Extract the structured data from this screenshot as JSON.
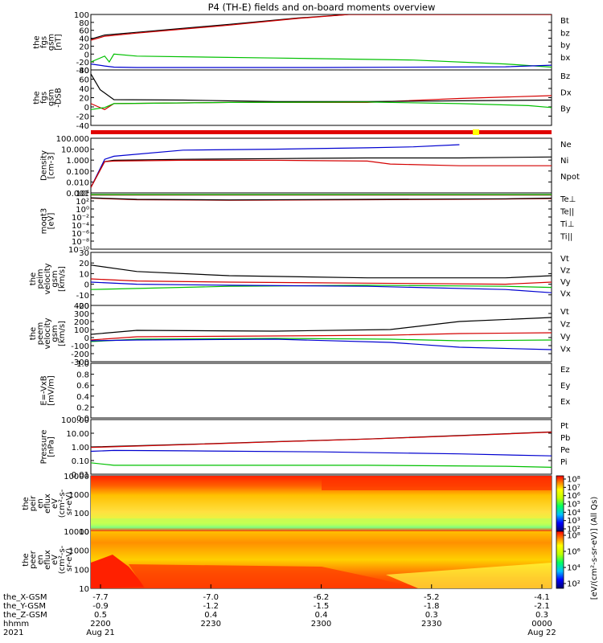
{
  "title": "P4 (TH-E) fields and on-board moments overview",
  "colors": {
    "black": "#000000",
    "red": "#d40000",
    "green": "#00c000",
    "blue": "#0000d0",
    "darkred": "#8b0000",
    "yellow": "#ffff00"
  },
  "chart_data": [
    {
      "type": "line",
      "ylabel_lines": [
        "the",
        "fgs",
        "gsm",
        "[nT]"
      ],
      "ylim": [
        -40,
        100
      ],
      "yticks": [
        "100",
        "80",
        "60",
        "40",
        "20",
        "0",
        "-20",
        "-40"
      ],
      "legend": [
        {
          "label": "Bt",
          "color": "#000000"
        },
        {
          "label": "bz",
          "color": "#d40000"
        },
        {
          "label": "by",
          "color": "#00c000"
        },
        {
          "label": "bx",
          "color": "#0000d0"
        }
      ],
      "series": [
        {
          "name": "Bt",
          "color": "#000000",
          "x": [
            0,
            0.03,
            0.1,
            0.3,
            0.45,
            0.56,
            1
          ],
          "y": [
            38,
            48,
            55,
            75,
            91,
            100,
            100
          ]
        },
        {
          "name": "bz",
          "color": "#d40000",
          "x": [
            0,
            0.03,
            0.1,
            0.3,
            0.45,
            0.56,
            1
          ],
          "y": [
            35,
            45,
            53,
            73,
            90,
            100,
            100
          ]
        },
        {
          "name": "by",
          "color": "#00c000",
          "x": [
            0,
            0.03,
            0.04,
            0.05,
            0.1,
            0.4,
            0.7,
            0.9,
            1
          ],
          "y": [
            -20,
            -5,
            -20,
            0,
            -5,
            -10,
            -15,
            -25,
            -33
          ]
        },
        {
          "name": "bx",
          "color": "#0000d0",
          "x": [
            0,
            0.03,
            0.05,
            0.1,
            0.5,
            0.9,
            1
          ],
          "y": [
            -25,
            -30,
            -33,
            -34,
            -34,
            -32,
            -28
          ]
        }
      ]
    },
    {
      "type": "line",
      "ylabel_lines": [
        "the",
        "fgs",
        "gsm",
        "-DSB"
      ],
      "ylim": [
        -50,
        90
      ],
      "yticks": [
        "80",
        "60",
        "40",
        "20",
        "0",
        "-20",
        "-40"
      ],
      "legend": [
        {
          "label": "Bz",
          "color": "#d40000"
        },
        {
          "label": "Dx",
          "color": "#000000"
        },
        {
          "label": "By",
          "color": "#00c000"
        }
      ],
      "series": [
        {
          "name": "Bz",
          "color": "#d40000",
          "x": [
            0,
            0.03,
            0.05,
            0.3,
            0.6,
            0.8,
            1
          ],
          "y": [
            5,
            -10,
            5,
            8,
            8,
            18,
            25
          ]
        },
        {
          "name": "Dx",
          "color": "#000000",
          "x": [
            0,
            0.02,
            0.05,
            0.2,
            0.4,
            0.6,
            0.8,
            1
          ],
          "y": [
            80,
            40,
            15,
            14,
            10,
            10,
            12,
            14
          ]
        },
        {
          "name": "By",
          "color": "#00c000",
          "x": [
            0,
            0.03,
            0.05,
            0.3,
            0.6,
            0.8,
            0.95,
            1
          ],
          "y": [
            -10,
            -5,
            5,
            8,
            9,
            5,
            0,
            -5
          ]
        }
      ]
    },
    {
      "type": "line",
      "ylabel_lines": [
        "Density",
        "[cm-3]"
      ],
      "yscale": "log",
      "ylim": [
        0.0001,
        1000
      ],
      "yticks": [
        "100.000",
        "10.000",
        "1.000",
        "0.100",
        "0.010",
        "0.001"
      ],
      "legend": [
        {
          "label": "Ne",
          "color": "#d40000"
        },
        {
          "label": "Ni",
          "color": "#000000"
        },
        {
          "label": "Npot",
          "color": "#0000d0"
        }
      ],
      "series": [
        {
          "name": "Npot",
          "color": "#0000d0",
          "x": [
            0,
            0.03,
            0.05,
            0.2,
            0.4,
            0.6,
            0.7,
            0.8
          ],
          "y": [
            0.0005,
            2,
            5,
            30,
            40,
            60,
            80,
            150
          ]
        },
        {
          "name": "Ni",
          "color": "#000000",
          "x": [
            0,
            0.03,
            0.05,
            0.2,
            0.4,
            0.6,
            0.8,
            1
          ],
          "y": [
            0.0005,
            1,
            1.5,
            2,
            2.5,
            3,
            3,
            4
          ]
        },
        {
          "name": "Ne",
          "color": "#d40000",
          "x": [
            0,
            0.03,
            0.05,
            0.2,
            0.4,
            0.6,
            0.65,
            0.8,
            1
          ],
          "y": [
            0.0005,
            1,
            1.2,
            1.5,
            1.5,
            1.2,
            0.5,
            0.3,
            0.3
          ]
        }
      ]
    },
    {
      "type": "line",
      "ylabel_lines": [
        "moqt3",
        "[eV]"
      ],
      "yscale": "log",
      "ylim": [
        1e-10,
        10000
      ],
      "yticks": [
        "10⁴",
        "10²",
        "10⁰",
        "10⁻²",
        "10⁻⁴",
        "10⁻⁶",
        "10⁻⁸",
        "10⁻¹⁰"
      ],
      "legend": [
        {
          "label": "Te⊥",
          "color": "#d40000"
        },
        {
          "label": "Te||",
          "color": "#000000"
        },
        {
          "label": "Ti⊥",
          "color": "#8b0000"
        },
        {
          "label": "Ti||",
          "color": "#00c000"
        }
      ],
      "series": [
        {
          "name": "Te⊥",
          "color": "#d40000",
          "x": [
            0,
            0.1,
            0.3,
            0.6,
            0.9,
            1
          ],
          "y": [
            500,
            200,
            150,
            200,
            300,
            400
          ]
        },
        {
          "name": "Te||",
          "color": "#000000",
          "x": [
            0,
            0.1,
            0.3,
            0.6,
            0.9,
            1
          ],
          "y": [
            600,
            250,
            180,
            250,
            350,
            500
          ]
        },
        {
          "name": "Ti⊥",
          "color": "#8b0000",
          "x": [
            0,
            1
          ],
          "y": [
            3000,
            3000
          ]
        },
        {
          "name": "Ti||",
          "color": "#00c000",
          "x": [
            0,
            1
          ],
          "y": [
            4000,
            4000
          ]
        }
      ]
    },
    {
      "type": "line",
      "ylabel_lines": [
        "the",
        "peim",
        "velocity",
        "gsm",
        "[km/s]"
      ],
      "ylim": [
        -20,
        30
      ],
      "yticks": [
        "30",
        "20",
        "10",
        "0",
        "-10",
        "-20"
      ],
      "legend": [
        {
          "label": "Vt",
          "color": "#000000"
        },
        {
          "label": "Vz",
          "color": "#d40000"
        },
        {
          "label": "Vy",
          "color": "#00c000"
        },
        {
          "label": "Vx",
          "color": "#0000d0"
        }
      ],
      "series": [
        {
          "name": "Vt",
          "color": "#000000",
          "x": [
            0,
            0.1,
            0.3,
            0.6,
            0.9,
            1
          ],
          "y": [
            18,
            12,
            8,
            6,
            6,
            8
          ]
        },
        {
          "name": "Vz",
          "color": "#d40000",
          "x": [
            0,
            0.1,
            0.3,
            0.6,
            0.9,
            1
          ],
          "y": [
            5,
            3,
            2,
            1,
            0,
            2
          ]
        },
        {
          "name": "Vy",
          "color": "#00c000",
          "x": [
            0,
            0.1,
            0.3,
            0.6,
            0.9,
            1
          ],
          "y": [
            -5,
            -4,
            -2,
            -1,
            -2,
            -3
          ]
        },
        {
          "name": "Vx",
          "color": "#0000d0",
          "x": [
            0,
            0.1,
            0.3,
            0.6,
            0.9,
            1
          ],
          "y": [
            2,
            0,
            -1,
            -2,
            -5,
            -8
          ]
        }
      ]
    },
    {
      "type": "line",
      "ylabel_lines": [
        "the",
        "peem",
        "velocity",
        "gsm",
        "[km/s]"
      ],
      "ylim": [
        -300,
        400
      ],
      "yticks": [
        "400",
        "300",
        "200",
        "100",
        "0",
        "-100",
        "-200",
        "-300"
      ],
      "legend": [
        {
          "label": "Vt",
          "color": "#000000"
        },
        {
          "label": "Vz",
          "color": "#d40000"
        },
        {
          "label": "Vy",
          "color": "#00c000"
        },
        {
          "label": "Vx",
          "color": "#0000d0"
        }
      ],
      "series": [
        {
          "name": "Vt",
          "color": "#000000",
          "x": [
            0,
            0.1,
            0.4,
            0.65,
            0.8,
            1
          ],
          "y": [
            40,
            90,
            80,
            100,
            200,
            250
          ]
        },
        {
          "name": "Vz",
          "color": "#d40000",
          "x": [
            0,
            0.1,
            0.4,
            0.65,
            0.8,
            1
          ],
          "y": [
            -30,
            10,
            20,
            30,
            50,
            60
          ]
        },
        {
          "name": "Vy",
          "color": "#00c000",
          "x": [
            0,
            0.1,
            0.4,
            0.65,
            0.8,
            1
          ],
          "y": [
            -50,
            -20,
            -10,
            -20,
            -40,
            -30
          ]
        },
        {
          "name": "Vx",
          "color": "#0000d0",
          "x": [
            0,
            0.1,
            0.4,
            0.65,
            0.8,
            1
          ],
          "y": [
            -40,
            -30,
            -20,
            -60,
            -120,
            -150
          ]
        }
      ]
    },
    {
      "type": "line",
      "ylabel_lines": [
        "E=-VxB",
        "[mV/m]"
      ],
      "ylim": [
        0,
        1
      ],
      "yticks": [
        "1.0",
        "0.8",
        "0.6",
        "0.4",
        "0.2",
        "0.0"
      ],
      "legend": [
        {
          "label": "Ez",
          "color": "#d40000"
        },
        {
          "label": "Ey",
          "color": "#00c000"
        },
        {
          "label": "Ex",
          "color": "#0000d0"
        }
      ],
      "series": []
    },
    {
      "type": "line",
      "ylabel_lines": [
        "Pressure",
        "[nPa]"
      ],
      "yscale": "log",
      "ylim": [
        0.005,
        300
      ],
      "yticks": [
        "100.00",
        "10.00",
        "1.00",
        "0.10",
        "0.01"
      ],
      "legend": [
        {
          "label": "Pt",
          "color": "#000000"
        },
        {
          "label": "Pb",
          "color": "#d40000"
        },
        {
          "label": "Pe",
          "color": "#00c000"
        },
        {
          "label": "Pi",
          "color": "#0000d0"
        }
      ],
      "series": [
        {
          "name": "Pt",
          "color": "#000000",
          "x": [
            0,
            0.2,
            0.4,
            0.6,
            0.8,
            1
          ],
          "y": [
            1.2,
            2,
            3.5,
            6,
            12,
            25
          ]
        },
        {
          "name": "Pb",
          "color": "#d40000",
          "x": [
            0,
            0.2,
            0.4,
            0.6,
            0.8,
            1
          ],
          "y": [
            1.1,
            1.9,
            3.4,
            5.9,
            11.5,
            24
          ]
        },
        {
          "name": "Pi",
          "color": "#0000d0",
          "x": [
            0,
            0.05,
            0.2,
            0.5,
            0.8,
            1
          ],
          "y": [
            0.5,
            0.6,
            0.55,
            0.45,
            0.3,
            0.2
          ]
        },
        {
          "name": "Pe",
          "color": "#00c000",
          "x": [
            0,
            0.05,
            0.1,
            0.3,
            0.6,
            0.9,
            1
          ],
          "y": [
            0.05,
            0.03,
            0.03,
            0.03,
            0.03,
            0.025,
            0.02
          ]
        }
      ]
    },
    {
      "type": "heatmap",
      "ylabel_lines": [
        "the",
        "peir",
        "en",
        "eflux",
        "eV",
        "(cm²-s-",
        "sr-eV)"
      ],
      "yscale": "log",
      "ylim": [
        5,
        30000
      ],
      "yticks": [
        "10000",
        "1000",
        "100",
        "10"
      ]
    },
    {
      "type": "heatmap",
      "ylabel_lines": [
        "the",
        "peer",
        "en",
        "eflux",
        "eV",
        "(cm²-s-",
        "sr-eV)"
      ],
      "yscale": "log",
      "ylim": [
        5,
        30000
      ],
      "yticks": [
        "10000",
        "1000",
        "100",
        "10"
      ]
    }
  ],
  "colorbar_label": "[eV/(cm²-s-sr-eV)] (All Qs)",
  "colorbar_ticks_upper": [
    "10⁸",
    "10⁷",
    "10⁶",
    "10⁵",
    "10⁴",
    "10³",
    "10²"
  ],
  "colorbar_ticks_lower": [
    "10⁸",
    "10⁶",
    "10⁴",
    "10²"
  ],
  "x_axis": {
    "ticks": [
      "",
      "",
      "",
      "",
      ""
    ],
    "row_labels": [
      "the_X-GSM",
      "the_Y-GSM",
      "the_Z-GSM",
      "hhmm",
      "2021"
    ],
    "rows": [
      [
        "-7.7",
        "-7.0",
        "-6.2",
        "-5.2",
        "-4.1"
      ],
      [
        "-0.9",
        "-1.2",
        "-1.5",
        "-1.8",
        "-2.1"
      ],
      [
        "0.5",
        "0.4",
        "0.4",
        "0.3",
        "0.3"
      ],
      [
        "2200",
        "2230",
        "2300",
        "2330",
        "0000"
      ],
      [
        "Aug 21",
        "",
        "",
        "",
        "Aug 22"
      ]
    ]
  }
}
